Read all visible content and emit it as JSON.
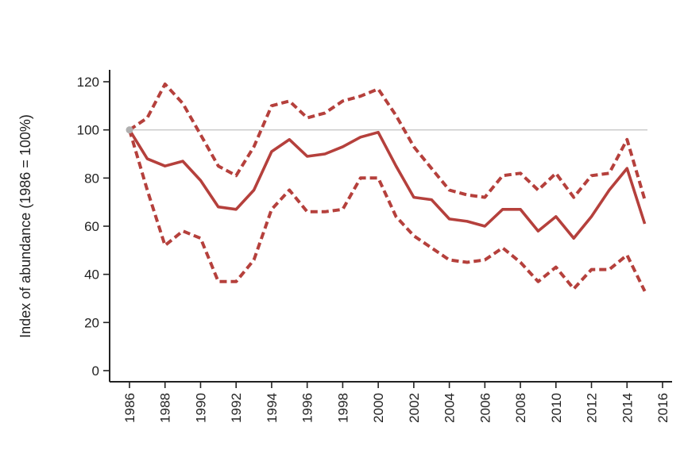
{
  "chart_data": {
    "type": "line",
    "title": "",
    "xlabel": "",
    "ylabel": "Index of abundance (1986 = 100%)",
    "xlim": [
      1986,
      2016
    ],
    "ylim": [
      0,
      120
    ],
    "x_ticks": [
      1986,
      1988,
      1990,
      1992,
      1994,
      1996,
      1998,
      2000,
      2002,
      2004,
      2006,
      2008,
      2010,
      2012,
      2014,
      2016
    ],
    "y_ticks": [
      0,
      20,
      40,
      60,
      80,
      100,
      120
    ],
    "reference_line": {
      "y": 100,
      "color": "#c8c8c8"
    },
    "baseline_marker": {
      "x": 1986,
      "y": 100,
      "color": "#b0b0b0"
    },
    "colors": {
      "series": "#b5403c",
      "axis": "#222222"
    },
    "x": [
      1986,
      1987,
      1988,
      1989,
      1990,
      1991,
      1992,
      1993,
      1994,
      1995,
      1996,
      1997,
      1998,
      1999,
      2000,
      2001,
      2002,
      2003,
      2004,
      2005,
      2006,
      2007,
      2008,
      2009,
      2010,
      2011,
      2012,
      2013,
      2014,
      2015
    ],
    "series": [
      {
        "role": "index",
        "style": "solid",
        "values": [
          100,
          88,
          85,
          87,
          79,
          68,
          67,
          75,
          91,
          96,
          89,
          90,
          93,
          97,
          99,
          85,
          72,
          71,
          63,
          62,
          60,
          67,
          67,
          58,
          64,
          55,
          64,
          75,
          84,
          61
        ]
      },
      {
        "role": "upper-bound",
        "style": "dashed",
        "values": [
          100,
          105,
          119,
          111,
          98,
          85,
          81,
          93,
          110,
          112,
          105,
          107,
          112,
          114,
          117,
          106,
          93,
          84,
          75,
          73,
          72,
          81,
          82,
          75,
          82,
          72,
          81,
          82,
          96,
          71
        ]
      },
      {
        "role": "lower-bound",
        "style": "dashed",
        "values": [
          100,
          75,
          52,
          58,
          55,
          37,
          37,
          46,
          67,
          75,
          66,
          66,
          67,
          80,
          80,
          64,
          56,
          51,
          46,
          45,
          46,
          51,
          45,
          37,
          43,
          34,
          42,
          42,
          48,
          33
        ]
      }
    ]
  }
}
